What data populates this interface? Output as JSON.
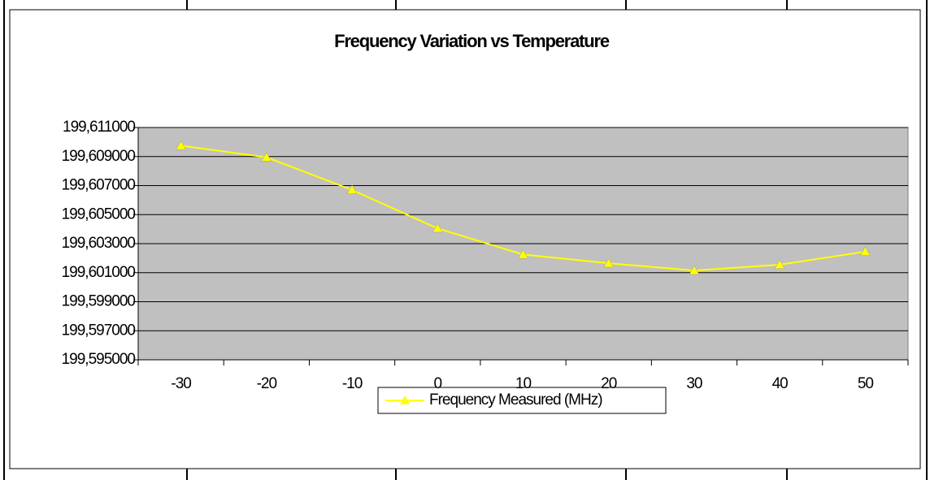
{
  "chart_data": {
    "type": "line",
    "title": "Frequency Variation vs Temperature",
    "categories": [
      "-30",
      "-20",
      "-10",
      "0",
      "10",
      "20",
      "30",
      "40",
      "50"
    ],
    "series": [
      {
        "name": "Frequency Measured (MHz)",
        "color": "#ffff00",
        "values": [
          199.60975,
          199.60895,
          199.6067,
          199.60405,
          199.60225,
          199.60165,
          199.60115,
          199.60155,
          199.60245
        ]
      }
    ],
    "ylim": [
      199.595,
      199.611
    ],
    "yticks": [
      {
        "value": 199.595,
        "label": "199,595000"
      },
      {
        "value": 199.597,
        "label": "199,597000"
      },
      {
        "value": 199.599,
        "label": "199,599000"
      },
      {
        "value": 199.601,
        "label": "199,601000"
      },
      {
        "value": 199.603,
        "label": "199,603000"
      },
      {
        "value": 199.605,
        "label": "199,605000"
      },
      {
        "value": 199.607,
        "label": "199,607000"
      },
      {
        "value": 199.609,
        "label": "199,609000"
      },
      {
        "value": 199.611,
        "label": "199,611000"
      }
    ],
    "grid": true,
    "plot_background": "#c0c0c0",
    "legend": "bottom"
  }
}
